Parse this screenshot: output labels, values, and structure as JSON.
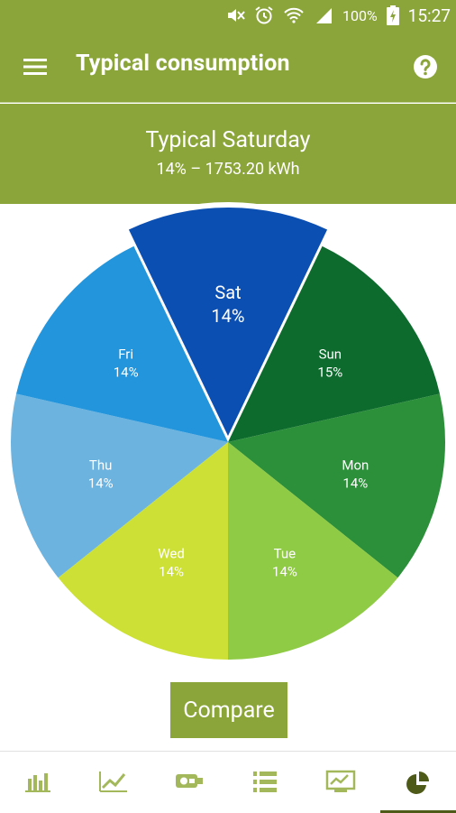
{
  "status_bar": {
    "battery_text": "100%",
    "time": "15:27",
    "icons": [
      "mute-icon",
      "alarm-icon",
      "wifi-icon",
      "signal-icon",
      "battery-charging-icon"
    ]
  },
  "app_bar": {
    "title": "Typical consumption",
    "menu_icon": "hamburger-menu-icon",
    "help_icon": "help-icon"
  },
  "summary": {
    "title": "Typical Saturday",
    "subtitle": "14% – 1753.20 kWh"
  },
  "chart_data": {
    "type": "pie",
    "selected": "Sat",
    "slices": [
      {
        "label": "Sat",
        "value": 14,
        "percent": "14%",
        "color": "#0b4fb3"
      },
      {
        "label": "Sun",
        "value": 15,
        "percent": "15%",
        "color": "#0c6b2d"
      },
      {
        "label": "Mon",
        "value": 14,
        "percent": "14%",
        "color": "#2c8f39"
      },
      {
        "label": "Tue",
        "value": 14,
        "percent": "14%",
        "color": "#8fcb45"
      },
      {
        "label": "Wed",
        "value": 14,
        "percent": "14%",
        "color": "#cce035"
      },
      {
        "label": "Thu",
        "value": 14,
        "percent": "14%",
        "color": "#6cb3e0"
      },
      {
        "label": "Fri",
        "value": 14,
        "percent": "14%",
        "color": "#2395dc"
      }
    ]
  },
  "compare_button": {
    "label": "Compare"
  },
  "bottom_nav": {
    "items": [
      {
        "icon": "bar-chart-icon"
      },
      {
        "icon": "line-chart-icon"
      },
      {
        "icon": "meter-icon"
      },
      {
        "icon": "list-icon"
      },
      {
        "icon": "monitor-chart-icon"
      },
      {
        "icon": "pie-chart-icon",
        "active": true
      }
    ]
  },
  "colors": {
    "brand": "#8ba53a",
    "nav_icon": "#a3b85a",
    "nav_active": "#4e5a18"
  }
}
